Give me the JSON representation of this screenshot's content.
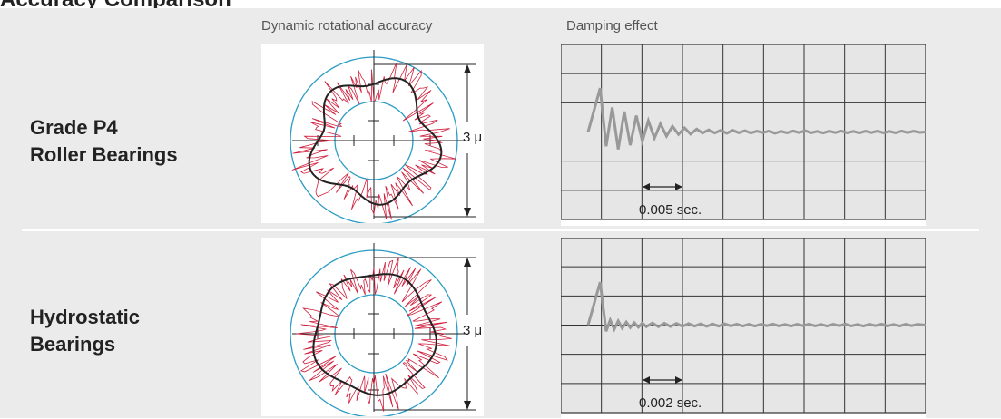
{
  "page": {
    "title": "Accuracy Comparison"
  },
  "columns": {
    "accuracy": "Dynamic rotational accuracy",
    "damping": "Damping effect"
  },
  "colors": {
    "panel_bg": "#ebebeb",
    "grid_bg": "#e6e6e6",
    "circle_blue": "#2a9bc4",
    "trace_red": "#d01f3c",
    "trace_black": "#222222",
    "signal_gray": "#999999"
  },
  "rows": [
    {
      "label_line1": "Grade P4",
      "label_line2": "Roller Bearings",
      "accuracy_scale": "3 μ",
      "damping_time": "0.005 sec.",
      "damping_curve": [
        [
          0.0,
          0.0
        ],
        [
          0.3,
          2.15
        ],
        [
          0.45,
          -0.7
        ],
        [
          0.6,
          1.2
        ],
        [
          0.75,
          -0.85
        ],
        [
          0.9,
          1.0
        ],
        [
          1.05,
          -0.65
        ],
        [
          1.2,
          0.8
        ],
        [
          1.35,
          -0.45
        ],
        [
          1.5,
          0.55
        ],
        [
          1.65,
          -0.3
        ],
        [
          1.8,
          0.4
        ],
        [
          1.95,
          -0.2
        ],
        [
          2.1,
          0.28
        ],
        [
          2.25,
          -0.12
        ],
        [
          2.4,
          0.2
        ],
        [
          2.55,
          -0.1
        ],
        [
          2.7,
          0.14
        ],
        [
          2.85,
          -0.05
        ],
        [
          3.0,
          0.1
        ],
        [
          3.15,
          -0.05
        ],
        [
          3.3,
          0.08
        ],
        [
          3.45,
          -0.06
        ],
        [
          3.6,
          0.08
        ],
        [
          3.75,
          -0.04
        ],
        [
          3.9,
          0.06
        ],
        [
          4.05,
          -0.05
        ],
        [
          4.2,
          0.04
        ],
        [
          4.35,
          -0.03
        ],
        [
          4.5,
          0.05
        ],
        [
          4.65,
          -0.06
        ],
        [
          4.8,
          0.03
        ],
        [
          4.95,
          -0.04
        ],
        [
          5.1,
          0.05
        ],
        [
          5.25,
          -0.03
        ],
        [
          5.4,
          0.06
        ],
        [
          5.55,
          -0.04
        ],
        [
          5.7,
          0.03
        ],
        [
          5.85,
          -0.05
        ],
        [
          6.0,
          0.04
        ],
        [
          6.15,
          -0.03
        ],
        [
          6.3,
          0.05
        ],
        [
          6.45,
          -0.04
        ],
        [
          6.6,
          0.03
        ],
        [
          6.75,
          -0.05
        ],
        [
          6.9,
          0.04
        ],
        [
          7.05,
          -0.03
        ],
        [
          7.2,
          0.05
        ],
        [
          7.35,
          -0.04
        ],
        [
          7.5,
          0.03
        ],
        [
          7.65,
          -0.04
        ],
        [
          7.8,
          0.05
        ],
        [
          7.95,
          -0.03
        ],
        [
          8.1,
          0.04
        ],
        [
          8.25,
          -0.02
        ],
        [
          8.4,
          0.0
        ]
      ]
    },
    {
      "label_line1": "Hydrostatic",
      "label_line2": "Bearings",
      "accuracy_scale": "3 μ",
      "damping_time": "0.002 sec.",
      "damping_curve": [
        [
          0.0,
          0.0
        ],
        [
          0.3,
          2.1
        ],
        [
          0.45,
          -0.3
        ],
        [
          0.55,
          0.25
        ],
        [
          0.65,
          -0.2
        ],
        [
          0.75,
          0.2
        ],
        [
          0.85,
          -0.15
        ],
        [
          0.95,
          0.15
        ],
        [
          1.05,
          -0.12
        ],
        [
          1.15,
          0.12
        ],
        [
          1.25,
          -0.1
        ],
        [
          1.35,
          0.1
        ],
        [
          1.45,
          -0.08
        ],
        [
          1.6,
          0.1
        ],
        [
          1.75,
          -0.08
        ],
        [
          1.9,
          0.09
        ],
        [
          2.05,
          -0.07
        ],
        [
          2.2,
          0.08
        ],
        [
          2.35,
          -0.06
        ],
        [
          2.5,
          0.07
        ],
        [
          2.65,
          -0.05
        ],
        [
          2.8,
          0.06
        ],
        [
          2.95,
          -0.06
        ],
        [
          3.1,
          0.05
        ],
        [
          3.25,
          -0.05
        ],
        [
          3.4,
          0.06
        ],
        [
          3.55,
          -0.04
        ],
        [
          3.7,
          0.05
        ],
        [
          3.85,
          -0.05
        ],
        [
          4.0,
          0.04
        ],
        [
          4.15,
          -0.05
        ],
        [
          4.3,
          0.04
        ],
        [
          4.45,
          -0.03
        ],
        [
          4.6,
          0.05
        ],
        [
          4.75,
          -0.04
        ],
        [
          4.9,
          0.03
        ],
        [
          5.05,
          -0.05
        ],
        [
          5.2,
          0.04
        ],
        [
          5.35,
          -0.03
        ],
        [
          5.5,
          0.05
        ],
        [
          5.65,
          -0.04
        ],
        [
          5.8,
          0.03
        ],
        [
          5.95,
          -0.05
        ],
        [
          6.1,
          0.04
        ],
        [
          6.25,
          -0.03
        ],
        [
          6.4,
          0.05
        ],
        [
          6.55,
          -0.04
        ],
        [
          6.7,
          0.03
        ],
        [
          6.85,
          -0.05
        ],
        [
          7.0,
          0.04
        ],
        [
          7.15,
          -0.03
        ],
        [
          7.3,
          0.05
        ],
        [
          7.45,
          -0.04
        ],
        [
          7.6,
          0.03
        ],
        [
          7.75,
          -0.05
        ],
        [
          7.9,
          0.04
        ],
        [
          8.05,
          -0.03
        ],
        [
          8.2,
          0.04
        ],
        [
          8.4,
          0.0
        ]
      ]
    }
  ]
}
